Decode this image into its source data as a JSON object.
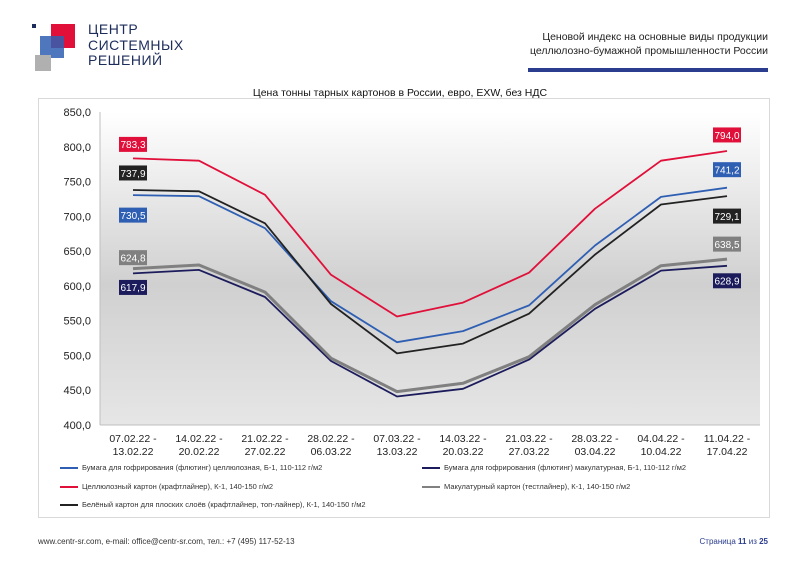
{
  "header": {
    "logo_lines": [
      "ЦЕНТР",
      "СИСТЕМНЫХ",
      "РЕШЕНИЙ"
    ],
    "title_line1": "Ценовой индекс на основные виды продукции",
    "title_line2": "целлюлозно-бумажной промышленности России",
    "accent_color": "#2b3d8f"
  },
  "chart_data": {
    "type": "line",
    "title": "Цена тонны тарных картонов в России, евро, EXW, без НДС",
    "categories": [
      [
        "07.02.22 -",
        "13.02.22"
      ],
      [
        "14.02.22 -",
        "20.02.22"
      ],
      [
        "21.02.22 -",
        "27.02.22"
      ],
      [
        "28.02.22 -",
        "06.03.22"
      ],
      [
        "07.03.22 -",
        "13.03.22"
      ],
      [
        "14.03.22 -",
        "20.03.22"
      ],
      [
        "21.03.22 -",
        "27.03.22"
      ],
      [
        "28.03.22 -",
        "03.04.22"
      ],
      [
        "04.04.22 -",
        "10.04.22"
      ],
      [
        "11.04.22 -",
        "17.04.22"
      ]
    ],
    "ylim": [
      400,
      850
    ],
    "yticks": [
      "400,0",
      "450,0",
      "500,0",
      "550,0",
      "600,0",
      "650,0",
      "700,0",
      "750,0",
      "800,0",
      "850,0"
    ],
    "grid": false,
    "legend_position": "bottom",
    "series": [
      {
        "name": "Бумага для гофрирования (флютинг) целлюлозная, Б-1, 110-112 г/м2",
        "color": "#2f5fb3",
        "values": [
          730.5,
          729,
          683,
          578,
          519,
          535,
          572,
          658,
          728,
          741.2
        ],
        "start_label": "730,5",
        "end_label": "741,2"
      },
      {
        "name": "Бумага для гофрирования (флютинг) макулатурная, Б-1, 110-112 г/м2",
        "color": "#1c1c5c",
        "values": [
          617.9,
          623,
          584,
          492,
          441,
          452,
          494,
          567,
          622,
          628.9
        ],
        "start_label": "617,9",
        "end_label": "628,9"
      },
      {
        "name": "Целлюлозный картон (крафтлайнер), К-1, 140-150 г/м2",
        "color": "#e0103a",
        "values": [
          783.3,
          780,
          731,
          616,
          556,
          576,
          619,
          711,
          780,
          794.0
        ],
        "start_label": "783,3",
        "end_label": "794,0"
      },
      {
        "name": "Макулатурный картон (тестлайнер), К-1, 140-150 г/м2",
        "color": "#808080",
        "values": [
          624.8,
          630,
          591,
          496,
          448,
          460,
          498,
          573,
          629,
          638.5
        ],
        "start_label": "624,8",
        "end_label": "638,5"
      },
      {
        "name": "Белёный картон для плоских слоёв (крафтлайнер, топ-лайнер), К-1, 140-150 г/м2",
        "color": "#222222",
        "values": [
          737.9,
          736,
          690,
          574,
          503,
          517,
          560,
          645,
          717,
          729.1
        ],
        "start_label": "737,9",
        "end_label": "729,1"
      }
    ]
  },
  "footer": {
    "contacts": "www.centr-sr.com, e-mail: office@centr-sr.com, тел.: +7 (495) 117-52-13",
    "page_word": "Страница",
    "page_current": "11",
    "page_of": "из",
    "page_total": "25"
  }
}
